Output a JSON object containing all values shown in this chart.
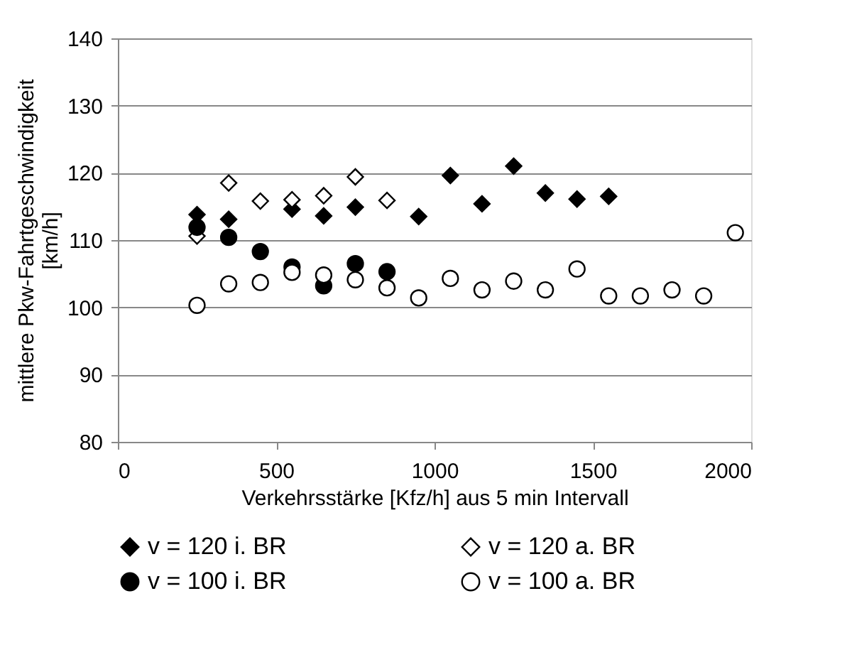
{
  "chart_data": {
    "type": "scatter",
    "xlabel": "Verkehrsstärke [Kfz/h] aus 5 min Intervall",
    "ylabel": "mittlere Pkw-Fahrtgeschwindigkeit\n[km/h]",
    "xlim": [
      0,
      2000
    ],
    "xticks": [
      0,
      500,
      1000,
      1500,
      2000
    ],
    "ylim": [
      80,
      140
    ],
    "yticks": [
      80,
      90,
      100,
      110,
      120,
      130,
      140
    ],
    "grid": "y",
    "legend": "bottom",
    "series": [
      {
        "name": "v = 120 i. BR",
        "color": "#000000",
        "marker": "diamond",
        "x": [
          250,
          350,
          550,
          650,
          750,
          950,
          1050,
          1150,
          1250,
          1350,
          1450,
          1550
        ],
        "values": [
          113.8,
          113.1,
          114.6,
          113.6,
          114.9,
          113.5,
          119.6,
          115.4,
          121,
          117,
          116.1,
          116.5
        ]
      },
      {
        "name": "v = 120 a.  BR",
        "color": "#ffffff",
        "marker": "diamond",
        "x": [
          250,
          350,
          450,
          550,
          650,
          750,
          850
        ],
        "values": [
          110.6,
          118.5,
          115.8,
          116,
          116.6,
          119.4,
          115.9
        ]
      },
      {
        "name": "v = 100 i. BR",
        "color": "#000000",
        "marker": "circle",
        "x": [
          250,
          350,
          450,
          550,
          650,
          750,
          850
        ],
        "values": [
          111.9,
          110.4,
          108.3,
          106,
          103.2,
          106.5,
          105.3
        ]
      },
      {
        "name": "v = 100 a.  BR",
        "color": "#ffffff",
        "marker": "circle",
        "x": [
          250,
          350,
          450,
          550,
          650,
          750,
          850,
          950,
          1050,
          1150,
          1250,
          1350,
          1450,
          1550,
          1650,
          1750,
          1850,
          1950
        ],
        "values": [
          100.3,
          103.5,
          103.7,
          105.2,
          104.8,
          104.1,
          102.9,
          101.4,
          104.3,
          102.6,
          103.9,
          102.6,
          105.7,
          101.7,
          101.7,
          102.6,
          101.7,
          111.1
        ]
      }
    ]
  }
}
